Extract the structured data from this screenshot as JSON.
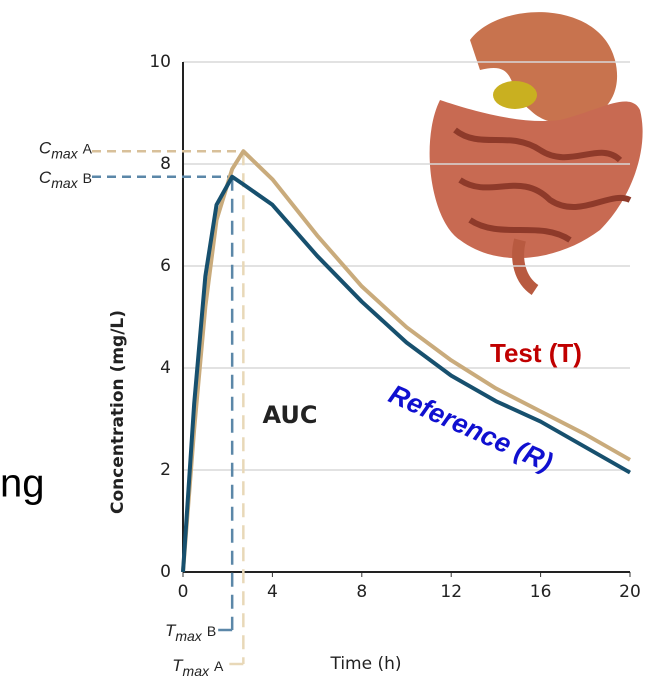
{
  "chart_data": {
    "type": "line",
    "side_text": "ng",
    "x_label": "Time (h)",
    "y_label": "Concentration (mg/L)",
    "x": [
      0,
      0.5,
      1,
      1.5,
      2.2,
      2.7,
      4,
      6,
      8,
      10,
      12,
      14,
      16,
      18,
      20
    ],
    "series": [
      {
        "name": "Test (T)",
        "color": "#c9ab7c",
        "values": [
          0,
          2.8,
          5.2,
          6.9,
          7.9,
          8.25,
          7.7,
          6.6,
          5.6,
          4.8,
          4.15,
          3.6,
          3.15,
          2.7,
          2.2
        ]
      },
      {
        "name": "Reference (R)",
        "color": "#17506e",
        "values": [
          0,
          3.3,
          5.8,
          7.2,
          7.75,
          7.6,
          7.2,
          6.2,
          5.3,
          4.5,
          3.85,
          3.35,
          2.95,
          2.45,
          1.95
        ]
      }
    ],
    "label_colors": [
      "#c00000",
      "#1010d0"
    ],
    "auc_label": "AUC",
    "cmax_a": {
      "main": "C",
      "sub": "max",
      "suffix": "A"
    },
    "cmax_b": {
      "main": "C",
      "sub": "max",
      "suffix": "B"
    },
    "tmax_b": {
      "main": "T",
      "sub": "max",
      "suffix": "B"
    },
    "tmax_a": {
      "main": "T",
      "sub": "max",
      "suffix": "A"
    },
    "xlim": [
      0,
      20
    ],
    "xticks": [
      0,
      4,
      8,
      12,
      16,
      20
    ],
    "ylim": [
      0,
      10
    ],
    "yticks": [
      0,
      2,
      4,
      6,
      8,
      10
    ],
    "grid": true
  }
}
